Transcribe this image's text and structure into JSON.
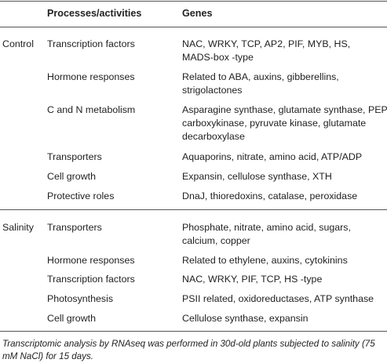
{
  "header": {
    "col1": "",
    "col2": "Processes/activities",
    "col3": "Genes"
  },
  "groups": [
    {
      "label": "Control",
      "rows": [
        {
          "process": "Transcription factors",
          "genes": [
            "NAC, WRKY, TCP, AP2, PIF, MYB, HS,",
            "MADS-box -type"
          ]
        },
        {
          "process": "Hormone responses",
          "genes": [
            "Related to ABA, auxins, gibberellins,",
            "strigolactones"
          ]
        },
        {
          "process": "C and N metabolism",
          "genes": [
            "Asparagine synthase, glutamate synthase, PEP",
            "carboxykinase, pyruvate kinase, glutamate",
            "decarboxylase"
          ]
        },
        {
          "process": "Transporters",
          "genes": [
            "Aquaporins, nitrate, amino acid, ATP/ADP"
          ]
        },
        {
          "process": "Cell growth",
          "genes": [
            "Expansin, cellulose synthase, XTH"
          ]
        },
        {
          "process": "Protective roles",
          "genes": [
            "DnaJ, thioredoxins, catalase, peroxidase"
          ]
        }
      ]
    },
    {
      "label": "Salinity",
      "rows": [
        {
          "process": "Transporters",
          "genes": [
            "Phosphate, nitrate, amino acid, sugars,",
            "calcium, copper"
          ]
        },
        {
          "process": "Hormone responses",
          "genes": [
            "Related to ethylene, auxins, cytokinins"
          ]
        },
        {
          "process": "Transcription factors",
          "genes": [
            "NAC, WRKY, PIF, TCP, HS -type"
          ]
        },
        {
          "process": "Photosynthesis",
          "genes": [
            "PSII related, oxidoreductases, ATP synthase"
          ]
        },
        {
          "process": "Cell growth",
          "genes": [
            "Cellulose synthase, expansin"
          ]
        }
      ]
    }
  ],
  "footnote": "Transcriptomic analysis by RNAseq was performed in 30d-old plants subjected to salinity (75 mM NaCl) for 15 days."
}
